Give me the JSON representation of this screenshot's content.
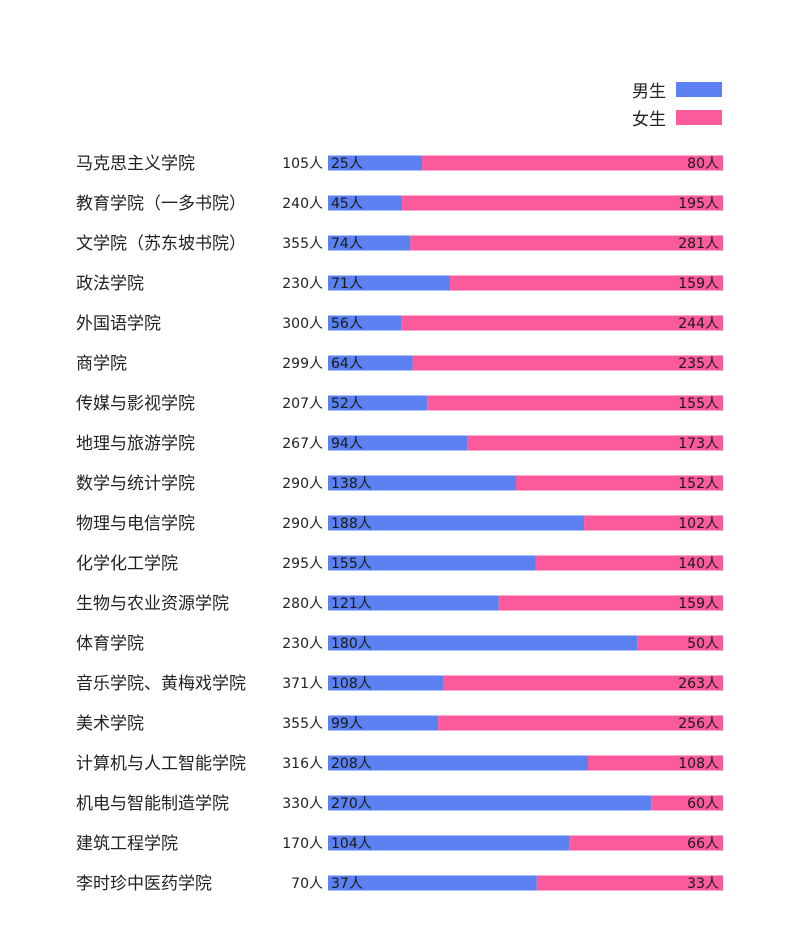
{
  "colors": {
    "male": "#5b80f0",
    "female": "#fb5a9c"
  },
  "legend": {
    "male_label": "男生",
    "female_label": "女生"
  },
  "chart_data": {
    "type": "bar",
    "stacked": true,
    "orientation": "horizontal",
    "normalized": true,
    "legend_position": "top-right",
    "categories": [
      "马克思主义学院",
      "教育学院（一多书院）",
      "文学院（苏东坡书院）",
      "政法学院",
      "外国语学院",
      "商学院",
      "传媒与影视学院",
      "地理与旅游学院",
      "数学与统计学院",
      "物理与电信学院",
      "化学化工学院",
      "生物与农业资源学院",
      "体育学院",
      "音乐学院、黄梅戏学院",
      "美术学院",
      "计算机与人工智能学院",
      "机电与智能制造学院",
      "建筑工程学院",
      "李时珍中医药学院"
    ],
    "totals": [
      "105人",
      "240人",
      "355人",
      "230人",
      "300人",
      "299人",
      "207人",
      "267人",
      "290人",
      "290人",
      "295人",
      "280人",
      "230人",
      "371人",
      "355人",
      "316人",
      "330人",
      "170人",
      "70人"
    ],
    "series": [
      {
        "name": "男生",
        "values": [
          25,
          45,
          74,
          71,
          56,
          64,
          52,
          94,
          138,
          188,
          155,
          121,
          180,
          108,
          99,
          208,
          270,
          104,
          37
        ],
        "labels": [
          "25人",
          "45人",
          "74人",
          "71人",
          "56人",
          "64人",
          "52人",
          "94人",
          "138人",
          "188人",
          "155人",
          "121人",
          "180人",
          "108人",
          "99人",
          "208人",
          "270人",
          "104人",
          "37人"
        ]
      },
      {
        "name": "女生",
        "values": [
          80,
          195,
          281,
          159,
          244,
          235,
          155,
          173,
          152,
          102,
          140,
          159,
          50,
          263,
          256,
          108,
          60,
          66,
          33
        ],
        "labels": [
          "80人",
          "195人",
          "281人",
          "159人",
          "244人",
          "235人",
          "155人",
          "173人",
          "152人",
          "102人",
          "140人",
          "159人",
          "50人",
          "263人",
          "256人",
          "108人",
          "60人",
          "66人",
          "33人"
        ]
      }
    ]
  }
}
